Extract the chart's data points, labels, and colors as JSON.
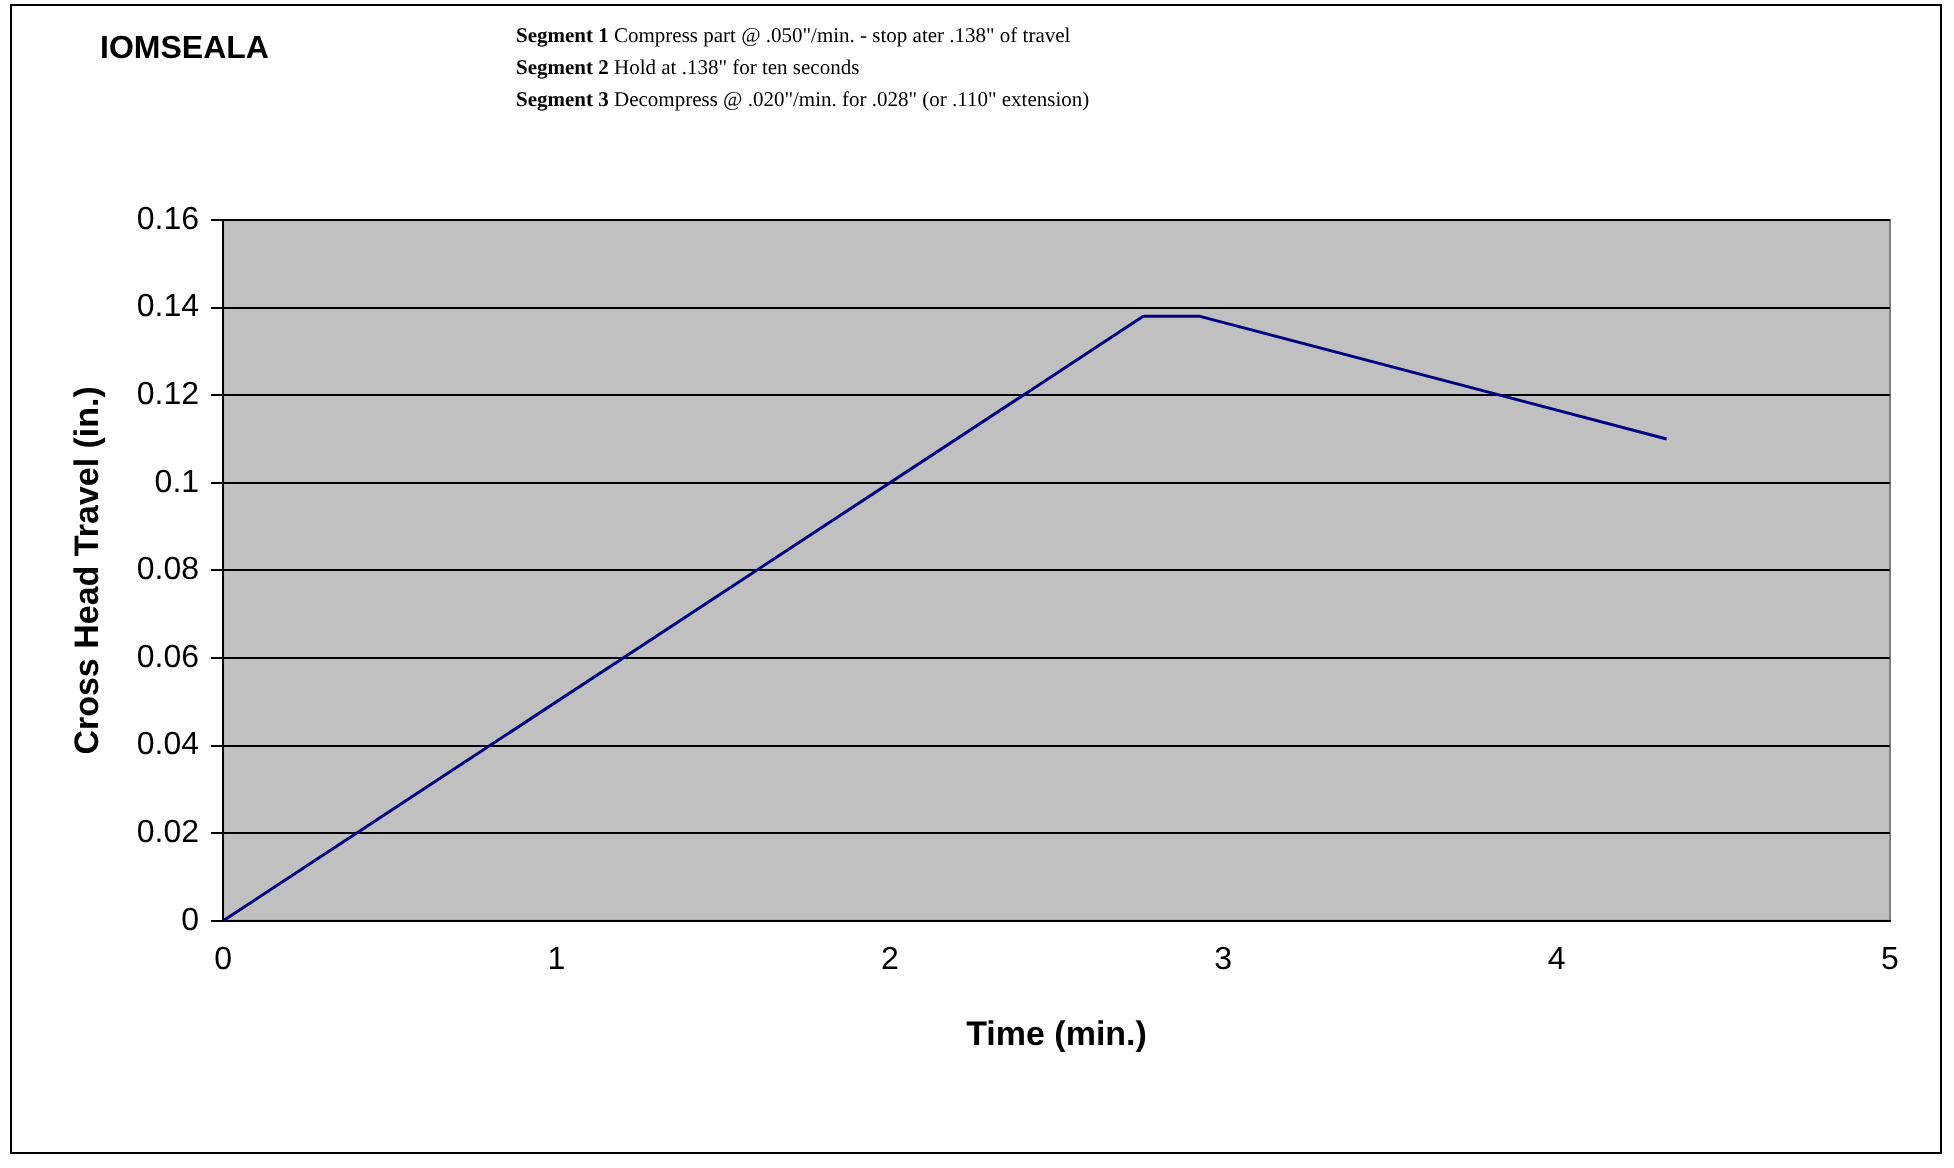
{
  "chart_data": {
    "type": "line",
    "title": "IOMSEALA",
    "annotations": [
      "Segment 1 Compress part @ .050\"/min. - stop ater .138\" of travel",
      "Segment 2 Hold at .138\" for ten seconds",
      "Segment 3 Decompress @ .020\"/min. for .028\" (or .110\" extension)"
    ],
    "xlabel": "Time (min.)",
    "ylabel": "Cross Head Travel (in.)",
    "x": [
      0,
      2.76,
      2.93,
      4.33
    ],
    "series": [
      {
        "color": "#000080",
        "values": [
          0,
          0.138,
          0.138,
          0.11
        ]
      }
    ],
    "xlim": [
      0,
      5
    ],
    "xticks": [
      0,
      1,
      2,
      3,
      4,
      5
    ],
    "ylim": [
      0,
      0.16
    ],
    "yticks": [
      0,
      0.02,
      0.04,
      0.06,
      0.08,
      0.1,
      0.12,
      0.14,
      0.16
    ],
    "grid": "y",
    "legend": false,
    "marker": "none",
    "line_style": "solid"
  }
}
